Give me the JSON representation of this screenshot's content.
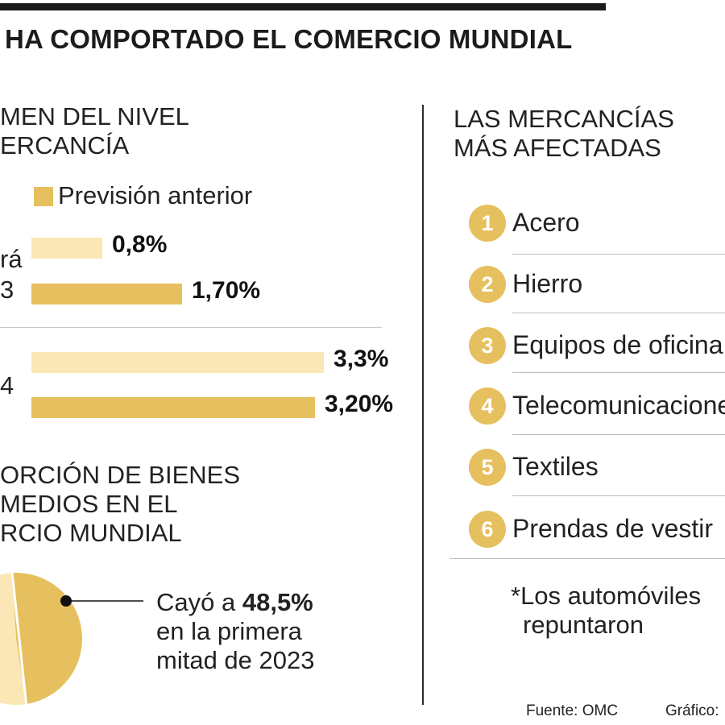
{
  "header": {
    "title": "HA COMPORTADO EL COMERCIO MUNDIAL"
  },
  "colors": {
    "accent": "#e6c05e",
    "light": "#fbe7b5",
    "text": "#222222",
    "rule": "#1a1a1a"
  },
  "volume_section": {
    "title_line1": "MEN DEL NIVEL",
    "title_line2": "ERCANCÍA",
    "legend_label": "Previsión anterior",
    "group_labels": [
      {
        "line1": "rá",
        "line2": "3"
      },
      {
        "line1": "",
        "line2": "4"
      }
    ]
  },
  "chart_data": [
    {
      "type": "bar",
      "orientation": "horizontal",
      "categories": [
        "rá 3",
        "4"
      ],
      "series": [
        {
          "values": [
            0.8,
            3.3
          ],
          "labels": [
            "0,8%",
            "3,3%"
          ],
          "color": "#fbe7b5"
        },
        {
          "name": "Previsión anterior",
          "values": [
            1.7,
            3.2
          ],
          "labels": [
            "1,70%",
            "3,20%"
          ],
          "color": "#e6c05e"
        }
      ]
    },
    {
      "type": "pie",
      "categories": [
        "Cayó a 48,5%",
        ""
      ],
      "values": [
        48.5,
        51.5
      ],
      "colors": [
        "#e6c05e",
        "#fbe7b5"
      ]
    }
  ],
  "intermediate_section": {
    "title_line1": "ORCIÓN DE BIENES",
    "title_line2": "MEDIOS EN EL",
    "title_line3": "RCIO MUNDIAL",
    "annotation_prefix": "Cayó a ",
    "annotation_value": "48,5%",
    "annotation_line2": "en la primera",
    "annotation_line3": "mitad de 2023"
  },
  "goods_section": {
    "title_line1": "LAS MERCANCÍAS",
    "title_line2": "MÁS AFECTADAS",
    "items": [
      {
        "rank": "1",
        "label": "Acero"
      },
      {
        "rank": "2",
        "label": "Hierro"
      },
      {
        "rank": "3",
        "label": "Equipos de oficina"
      },
      {
        "rank": "4",
        "label": "Telecomunicaciones"
      },
      {
        "rank": "5",
        "label": "Textiles"
      },
      {
        "rank": "6",
        "label": "Prendas de vestir"
      }
    ],
    "note_line1": "*Los automóviles",
    "note_line2": "repuntaron"
  },
  "footer": {
    "source": "Fuente:  OMC",
    "credit": "Gráfico:"
  }
}
